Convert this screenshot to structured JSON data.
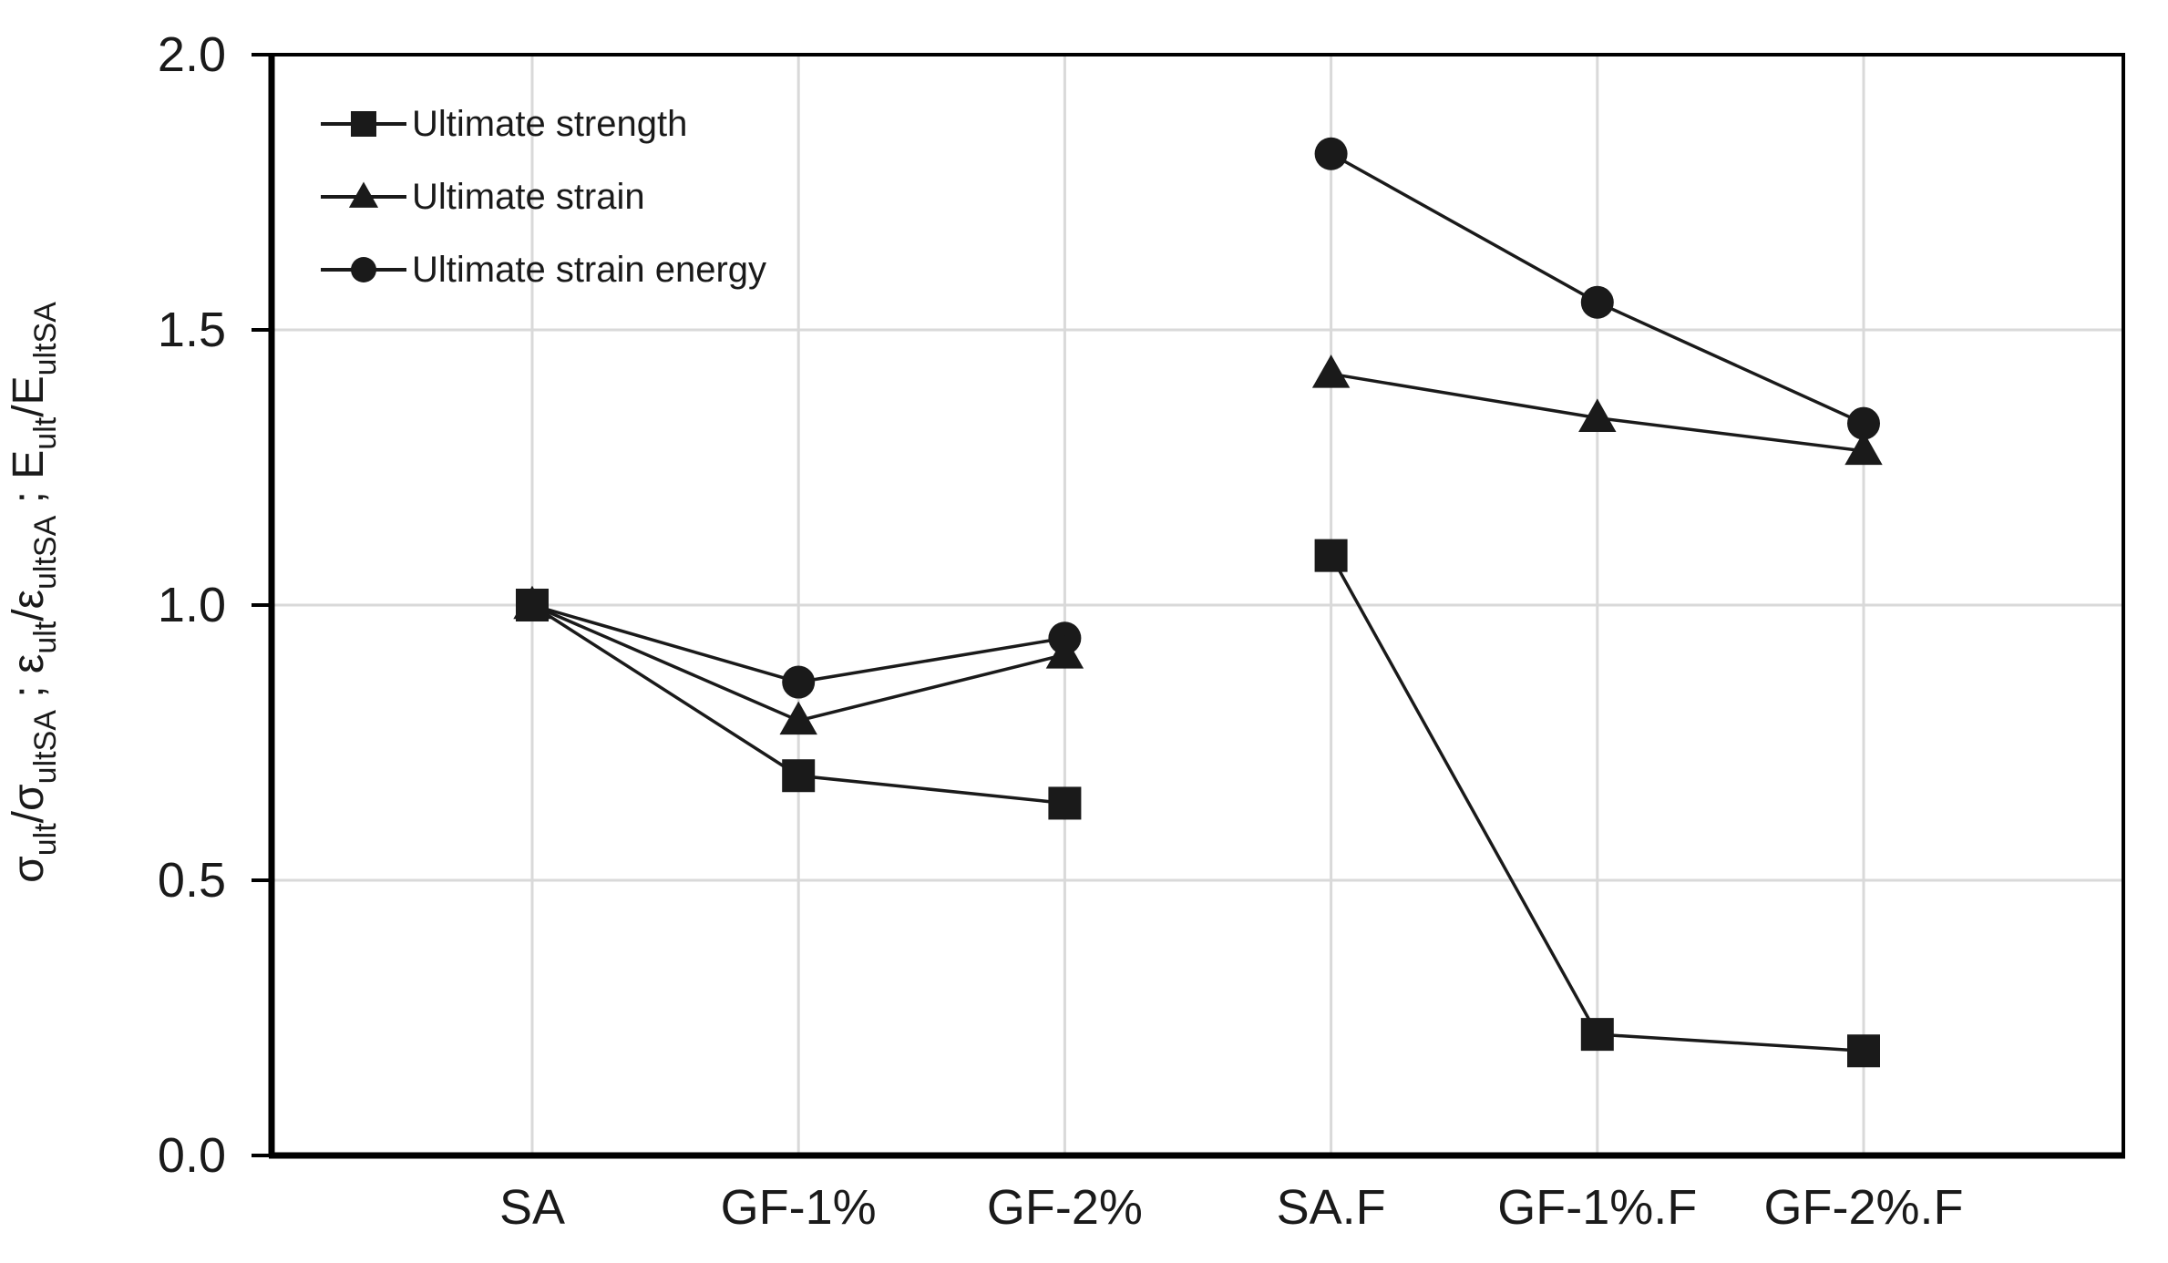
{
  "chart_data": {
    "type": "line",
    "title": "",
    "xlabel": "",
    "categories": [
      "SA",
      "GF-1%",
      "GF-2%",
      "SA.F",
      "GF-1%.F",
      "GF-2%.F"
    ],
    "series": [
      {
        "name": "Ultimate strength",
        "marker": "square",
        "values": [
          1.0,
          0.69,
          0.64,
          1.09,
          0.22,
          0.19
        ]
      },
      {
        "name": "Ultimate strain",
        "marker": "triangle",
        "values": [
          1.0,
          0.79,
          0.91,
          1.42,
          1.34,
          1.28
        ]
      },
      {
        "name": "Ultimate strain energy",
        "marker": "circle",
        "values": [
          1.0,
          0.86,
          0.94,
          1.82,
          1.55,
          1.33
        ]
      }
    ],
    "segments": [
      [
        0,
        1,
        2
      ],
      [
        3,
        4,
        5
      ]
    ],
    "ylim": [
      0.0,
      2.0
    ],
    "ytick_step": 0.5,
    "yticks": [
      0.0,
      0.5,
      1.0,
      1.5,
      2.0
    ],
    "ytick_labels": [
      "0.0",
      "0.5",
      "1.0",
      "1.5",
      "2.0"
    ],
    "ylabel_segments": [
      {
        "t": "σ"
      },
      {
        "t": "ult",
        "sub": true
      },
      {
        "t": "/"
      },
      {
        "t": "σ"
      },
      {
        "t": "ultSA",
        "sub": true
      },
      {
        "t": " ; "
      },
      {
        "t": "ε"
      },
      {
        "t": "ult",
        "sub": true
      },
      {
        "t": "/"
      },
      {
        "t": "ε"
      },
      {
        "t": "ultSA",
        "sub": true
      },
      {
        "t": " ; "
      },
      {
        "t": "E"
      },
      {
        "t": "ult",
        "sub": true
      },
      {
        "t": "/"
      },
      {
        "t": "E"
      },
      {
        "t": "ultSA",
        "sub": true
      }
    ],
    "grid": true,
    "legend_position": "top-left-inside",
    "colors": {
      "series": "#1a1a1a",
      "grid": "#d9d9d9",
      "frame": "#000000",
      "background": "#ffffff",
      "text": "#1a1a1a"
    }
  }
}
